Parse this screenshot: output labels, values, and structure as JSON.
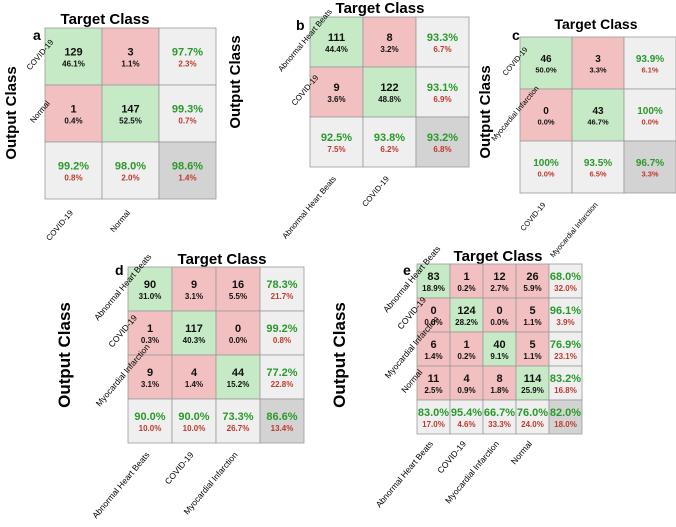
{
  "colors": {
    "correct": "#c6e9c6",
    "wrong": "#f2c0c0",
    "summary": "#efefef",
    "total": "#d3d3d3",
    "green_text": "#2a9a2a",
    "red_text": "#c0392b",
    "grid": "#9a9a9a"
  },
  "chart_data": [
    {
      "type": "table",
      "panel_label": "a",
      "title": "Target Class",
      "ylabel": "Output Class",
      "classes": [
        "COVID-19",
        "Normal"
      ],
      "cells": [
        [
          {
            "count": "129",
            "pct": "46.1%"
          },
          {
            "count": "3",
            "pct": "1.1%"
          }
        ],
        [
          {
            "count": "1",
            "pct": "0.4%"
          },
          {
            "count": "147",
            "pct": "52.5%"
          }
        ]
      ],
      "row_summary": [
        [
          "97.7%",
          "2.3%"
        ],
        [
          "99.3%",
          "0.7%"
        ]
      ],
      "col_summary": [
        [
          "99.2%",
          "0.8%"
        ],
        [
          "98.0%",
          "2.0%"
        ]
      ],
      "total": [
        "98.6%",
        "1.4%"
      ]
    },
    {
      "type": "table",
      "panel_label": "b",
      "title": "Target Class",
      "ylabel": "Output Class",
      "classes": [
        "Abnormal Heart Beats",
        "COVID-19"
      ],
      "cells": [
        [
          {
            "count": "111",
            "pct": "44.4%"
          },
          {
            "count": "8",
            "pct": "3.2%"
          }
        ],
        [
          {
            "count": "9",
            "pct": "3.6%"
          },
          {
            "count": "122",
            "pct": "48.8%"
          }
        ]
      ],
      "row_summary": [
        [
          "93.3%",
          "6.7%"
        ],
        [
          "93.1%",
          "6.9%"
        ]
      ],
      "col_summary": [
        [
          "92.5%",
          "7.5%"
        ],
        [
          "93.8%",
          "6.2%"
        ]
      ],
      "total": [
        "93.2%",
        "6.8%"
      ]
    },
    {
      "type": "table",
      "panel_label": "c",
      "title": "Target Class",
      "ylabel": "Output Class",
      "classes": [
        "COVID-19",
        "Myocardial Infarction"
      ],
      "cells": [
        [
          {
            "count": "46",
            "pct": "50.0%"
          },
          {
            "count": "3",
            "pct": "3.3%"
          }
        ],
        [
          {
            "count": "0",
            "pct": "0.0%"
          },
          {
            "count": "43",
            "pct": "46.7%"
          }
        ]
      ],
      "row_summary": [
        [
          "93.9%",
          "6.1%"
        ],
        [
          "100%",
          "0.0%"
        ]
      ],
      "col_summary": [
        [
          "100%",
          "0.0%"
        ],
        [
          "93.5%",
          "6.5%"
        ]
      ],
      "total": [
        "96.7%",
        "3.3%"
      ]
    },
    {
      "type": "table",
      "panel_label": "d",
      "title": "Target Class",
      "ylabel": "Output Class",
      "classes": [
        "Abnormal Heart Beats",
        "COVID-19",
        "Myocardial Infarction"
      ],
      "cells": [
        [
          {
            "count": "90",
            "pct": "31.0%"
          },
          {
            "count": "9",
            "pct": "3.1%"
          },
          {
            "count": "16",
            "pct": "5.5%"
          }
        ],
        [
          {
            "count": "1",
            "pct": "0.3%"
          },
          {
            "count": "117",
            "pct": "40.3%"
          },
          {
            "count": "0",
            "pct": "0.0%"
          }
        ],
        [
          {
            "count": "9",
            "pct": "3.1%"
          },
          {
            "count": "4",
            "pct": "1.4%"
          },
          {
            "count": "44",
            "pct": "15.2%"
          }
        ]
      ],
      "row_summary": [
        [
          "78.3%",
          "21.7%"
        ],
        [
          "99.2%",
          "0.8%"
        ],
        [
          "77.2%",
          "22.8%"
        ]
      ],
      "col_summary": [
        [
          "90.0%",
          "10.0%"
        ],
        [
          "90.0%",
          "10.0%"
        ],
        [
          "73.3%",
          "26.7%"
        ]
      ],
      "total": [
        "86.6%",
        "13.4%"
      ]
    },
    {
      "type": "table",
      "panel_label": "e",
      "title": "Target Class",
      "ylabel": "Output Class",
      "classes": [
        "Abnormal Heart Beats",
        "COVID-19",
        "Myocardial Infarction",
        "Normal"
      ],
      "cells": [
        [
          {
            "count": "83",
            "pct": "18.9%"
          },
          {
            "count": "1",
            "pct": "0.2%"
          },
          {
            "count": "12",
            "pct": "2.7%"
          },
          {
            "count": "26",
            "pct": "5.9%"
          }
        ],
        [
          {
            "count": "0",
            "pct": "0.0%"
          },
          {
            "count": "124",
            "pct": "28.2%"
          },
          {
            "count": "0",
            "pct": "0.0%"
          },
          {
            "count": "5",
            "pct": "1.1%"
          }
        ],
        [
          {
            "count": "6",
            "pct": "1.4%"
          },
          {
            "count": "1",
            "pct": "0.2%"
          },
          {
            "count": "40",
            "pct": "9.1%"
          },
          {
            "count": "5",
            "pct": "1.1%"
          }
        ],
        [
          {
            "count": "11",
            "pct": "2.5%"
          },
          {
            "count": "4",
            "pct": "0.9%"
          },
          {
            "count": "8",
            "pct": "1.8%"
          },
          {
            "count": "114",
            "pct": "25.9%"
          }
        ]
      ],
      "row_summary": [
        [
          "68.0%",
          "32.0%"
        ],
        [
          "96.1%",
          "3.9%"
        ],
        [
          "76.9%",
          "23.1%"
        ],
        [
          "83.2%",
          "16.8%"
        ]
      ],
      "col_summary": [
        [
          "83.0%",
          "17.0%"
        ],
        [
          "95.4%",
          "4.6%"
        ],
        [
          "66.7%",
          "33.3%"
        ],
        [
          "76.0%",
          "24.0%"
        ]
      ],
      "total": [
        "82.0%",
        "18.0%"
      ]
    }
  ]
}
